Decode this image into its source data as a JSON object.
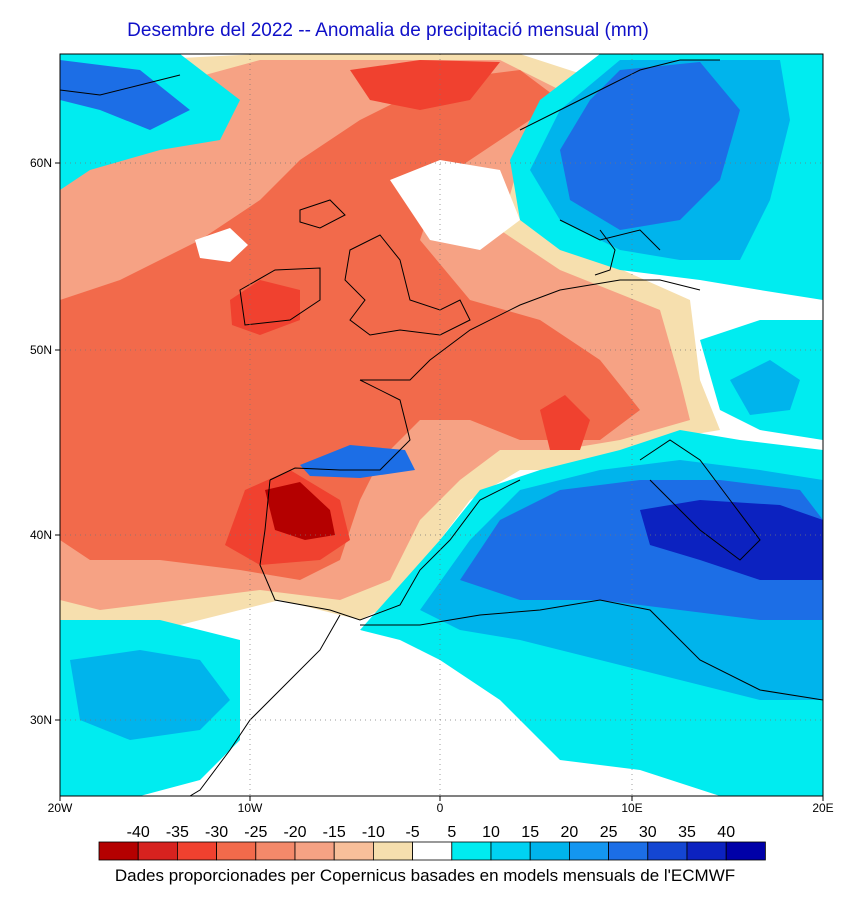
{
  "title": "Desembre del 2022 -- Anomalia de precipitació mensual (mm)",
  "footer": "Dades proporcionades per Copernicus basades en models mensuals de l'ECMWF",
  "axes": {
    "lon_ticks": [
      "20W",
      "10W",
      "0",
      "10E",
      "20E"
    ],
    "lat_ticks": [
      "60N",
      "50N",
      "40N",
      "30N"
    ],
    "lon_range": [
      -20,
      20
    ],
    "lat_range": [
      26,
      66
    ]
  },
  "legend": {
    "labels": [
      "-40",
      "-35",
      "-30",
      "-25",
      "-20",
      "-15",
      "-10",
      "-5",
      "5",
      "10",
      "15",
      "20",
      "25",
      "30",
      "35",
      "40"
    ],
    "colors": [
      "#b40000",
      "#d7221f",
      "#f0412f",
      "#f26a4b",
      "#f4896a",
      "#f6a284",
      "#f8bf9a",
      "#f6dfae",
      "#ffffff",
      "#00ecf0",
      "#00d2f2",
      "#00b4ec",
      "#1496f0",
      "#1c6ee6",
      "#1446d2",
      "#0c22c0",
      "#0000a8"
    ]
  },
  "map_colors": {
    "ocean_white": "#ffffff",
    "dry_light": "#f6dfae",
    "dry_mid": "#f6a284",
    "dry_strong": "#f26a4b",
    "dry_intense": "#f0412f",
    "dry_extreme": "#b40000",
    "wet_light": "#00ecf0",
    "wet_mid": "#00b4ec",
    "wet_strong": "#1c6ee6",
    "wet_intense": "#0c22c0"
  }
}
